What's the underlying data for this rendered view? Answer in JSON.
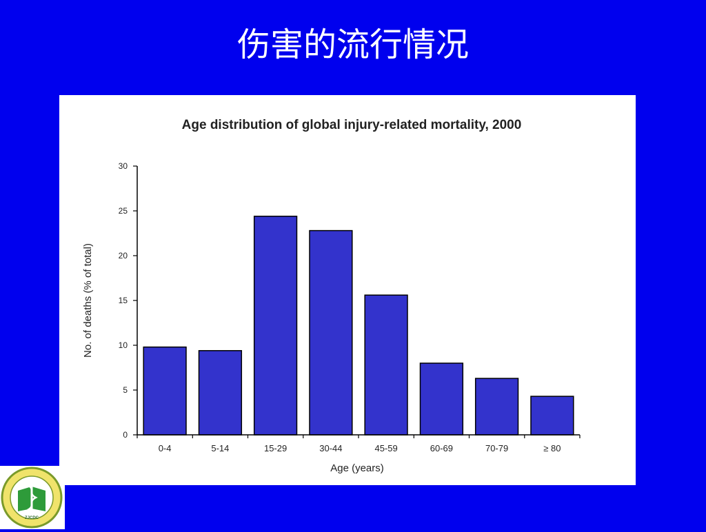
{
  "slide": {
    "title": "伤害的流行情况"
  },
  "colors": {
    "background": "#0000ee",
    "bar_fill": "#3333cc",
    "panel": "#ffffff",
    "logo_ring": "#7a9a2a",
    "logo_green": "#2e9b3a",
    "logo_yellow": "#f0e36b"
  },
  "logo": {
    "icon": "caduceus-seal-icon",
    "text": "ZJCDC"
  },
  "chart_data": {
    "type": "bar",
    "title": "Age distribution of global injury-related mortality, 2000",
    "xlabel": "Age (years)",
    "ylabel": "No. of deaths (% of total)",
    "categories": [
      "0-4",
      "5-14",
      "15-29",
      "30-44",
      "45-59",
      "60-69",
      "70-79",
      "≥ 80"
    ],
    "values": [
      9.8,
      9.4,
      24.4,
      22.8,
      15.6,
      8.0,
      6.3,
      4.3
    ],
    "ylim": [
      0,
      30
    ],
    "yticks": [
      0,
      5,
      10,
      15,
      20,
      25,
      30
    ],
    "grid": false,
    "legend": "none"
  }
}
